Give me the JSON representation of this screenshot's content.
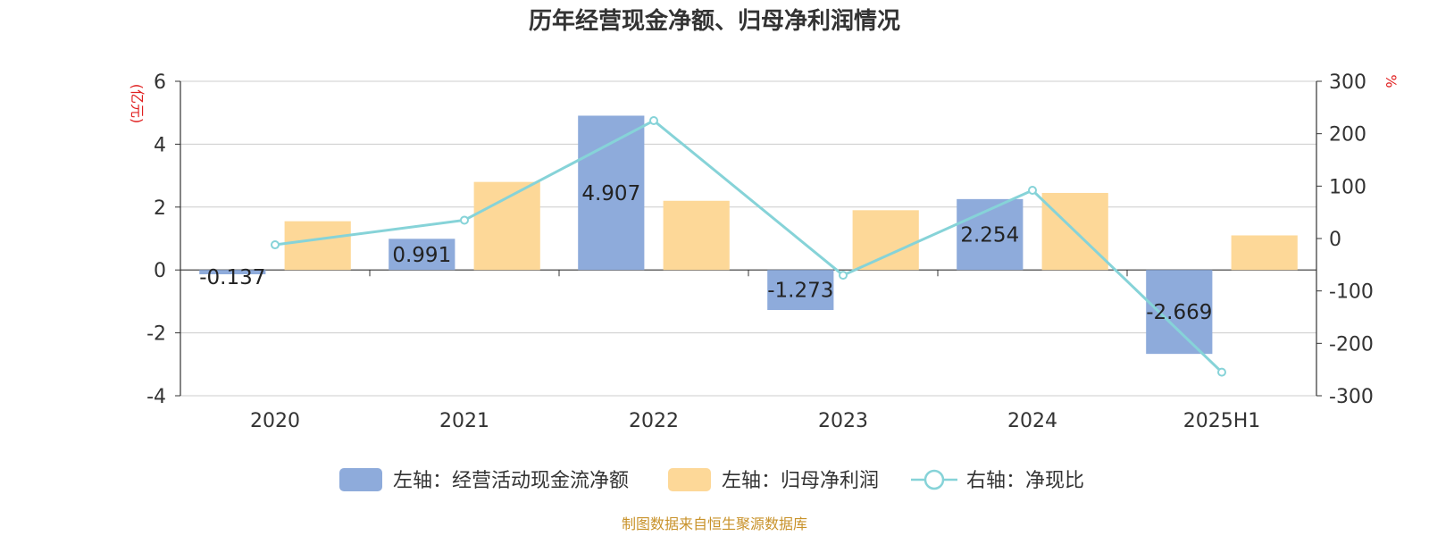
{
  "chart_data": {
    "type": "bar",
    "title": "历年经营现金净额、归母净利润情况",
    "categories": [
      "2020",
      "2021",
      "2022",
      "2023",
      "2024",
      "2025H1"
    ],
    "series": [
      {
        "name": "左轴：经营活动现金流净额",
        "axis": "left",
        "kind": "bar",
        "color": "#8eabdb",
        "values": [
          -0.137,
          0.991,
          4.907,
          -1.273,
          2.254,
          -2.669
        ],
        "labels": [
          "-0.137",
          "0.991",
          "4.907",
          "-1.273",
          "2.254",
          "-2.669"
        ]
      },
      {
        "name": "左轴：归母净利润",
        "axis": "left",
        "kind": "bar",
        "color": "#fdd898",
        "values": [
          1.55,
          2.8,
          2.2,
          1.9,
          2.45,
          1.1
        ]
      },
      {
        "name": "右轴：净现比",
        "axis": "right",
        "kind": "line",
        "color": "#86d3d8",
        "values": [
          -12,
          35,
          225,
          -70,
          92,
          -255
        ]
      }
    ],
    "left_axis": {
      "unit": "(亿元)",
      "ylim": [
        -4,
        6
      ],
      "ticks": [
        -4,
        -2,
        0,
        2,
        4,
        6
      ]
    },
    "right_axis": {
      "unit": "%",
      "ylim": [
        -300,
        300
      ],
      "ticks": [
        -300,
        -200,
        -100,
        0,
        100,
        200,
        300
      ]
    },
    "grid": true,
    "legend_position": "bottom"
  },
  "footer": {
    "source": "制图数据来自恒生聚源数据库"
  }
}
